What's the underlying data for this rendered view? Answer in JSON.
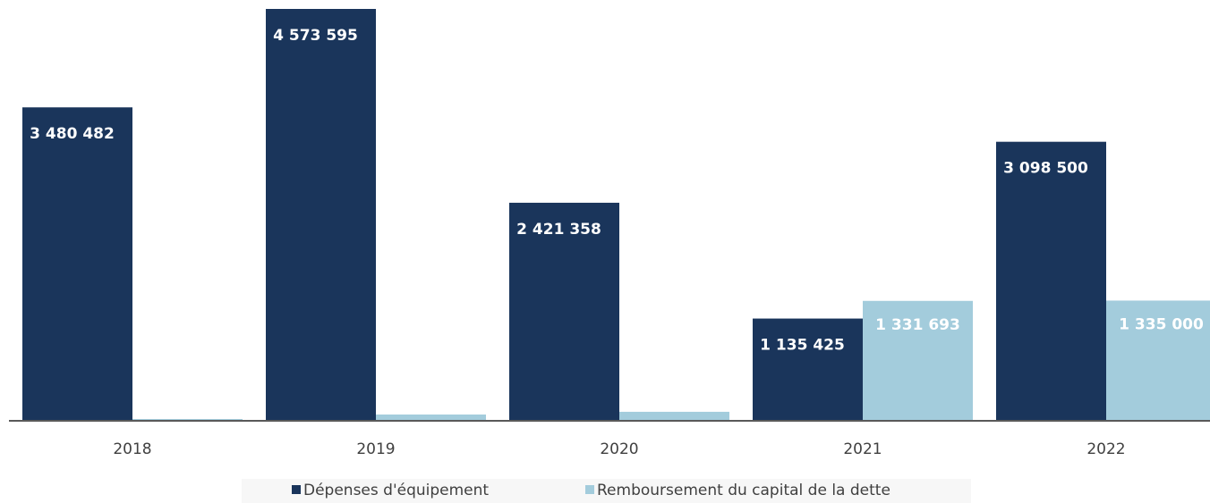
{
  "chart_data": {
    "type": "bar",
    "categories": [
      "2018",
      "2019",
      "2020",
      "2021",
      "2022"
    ],
    "series": [
      {
        "name": "Dépenses d'équipement",
        "color": "#1a355b",
        "values": [
          3480482,
          4573595,
          2421358,
          1135425,
          3098500
        ],
        "value_labels": [
          "3 480 482",
          "4 573 595",
          "2 421 358",
          "1 135 425",
          "3 098 500"
        ]
      },
      {
        "name": "Remboursement du capital de la dette",
        "color": "#a3ccdc",
        "values": [
          20000,
          70000,
          100000,
          1331693,
          1335000
        ],
        "value_labels": [
          null,
          null,
          null,
          "1 331 693",
          "1 335 000"
        ]
      }
    ]
  }
}
